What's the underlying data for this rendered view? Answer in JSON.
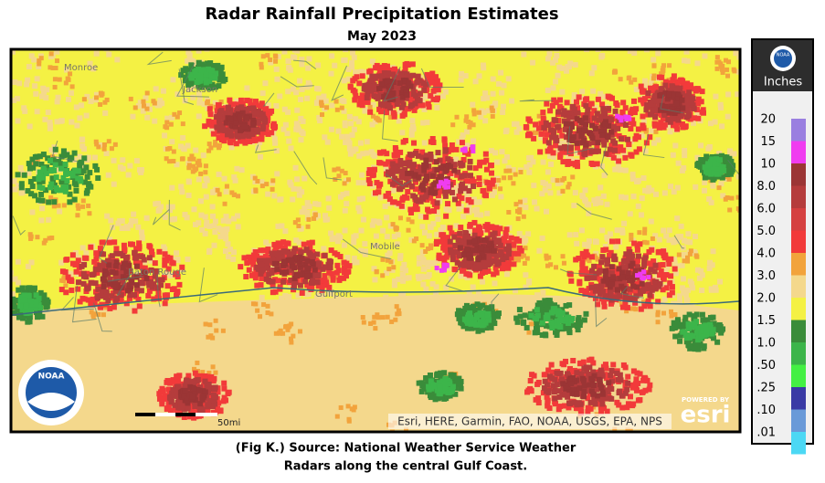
{
  "header": {
    "title": "Radar Rainfall Precipitation Estimates",
    "subtitle": "May 2023"
  },
  "map": {
    "places": [
      "Monroe",
      "Jackson",
      "Gulfport",
      "Mobile",
      "Baton Rouge"
    ],
    "noaa_logo": "NOAA",
    "scale_bar": "50mi",
    "attribution": "Esri, HERE, Garmin, FAO, NOAA, USGS, EPA, NPS",
    "esri_powered": "POWERED BY",
    "esri": "esri"
  },
  "legend": {
    "unit": "Inches",
    "logo": "NOAA",
    "items": [
      {
        "label": "20",
        "color": "#9a7fe0"
      },
      {
        "label": "15",
        "color": "#f03cf0"
      },
      {
        "label": "10",
        "color": "#9b3535"
      },
      {
        "label": "8.0",
        "color": "#b53c3c"
      },
      {
        "label": "6.0",
        "color": "#d54040"
      },
      {
        "label": "5.0",
        "color": "#f23a3a"
      },
      {
        "label": "4.0",
        "color": "#f2a33c"
      },
      {
        "label": "3.0",
        "color": "#f4d88c"
      },
      {
        "label": "2.0",
        "color": "#f4f144"
      },
      {
        "label": "1.5",
        "color": "#3a8c3a"
      },
      {
        "label": "1.0",
        "color": "#3cb54a"
      },
      {
        "label": ".50",
        "color": "#44f044"
      },
      {
        "label": ".25",
        "color": "#3a3aa5"
      },
      {
        "label": ".10",
        "color": "#6a9ad8"
      },
      {
        "label": ".01",
        "color": "#4cd8f4"
      }
    ]
  },
  "caption": {
    "line1": "(Fig K.) Source: National Weather Service Weather",
    "line2": "Radars along the central Gulf Coast."
  }
}
